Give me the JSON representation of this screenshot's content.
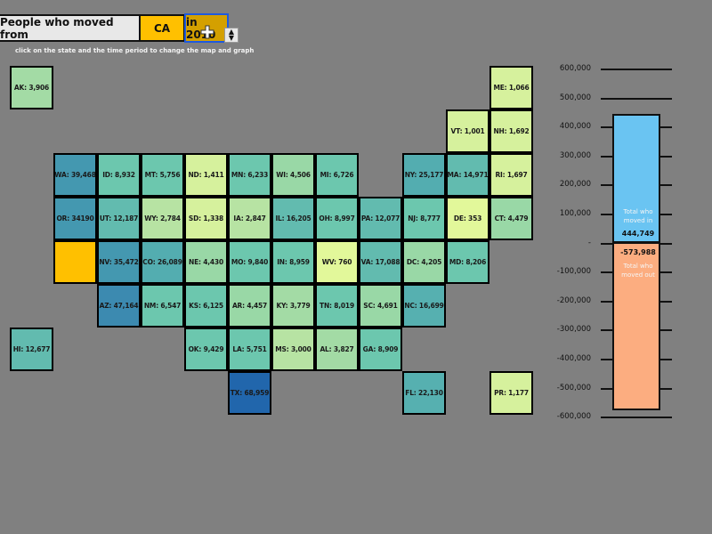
{
  "header": {
    "prefix_label": "People who moved from",
    "selected_state": "CA",
    "selected_year": "in 2010",
    "hint": "click on the state and the time period to change the map and graph"
  },
  "colors": {
    "background": "#808080",
    "selected_state": "#ffc000",
    "year_box": "#d4a000",
    "moved_in_bar": "#6ac4f2",
    "moved_out_bar": "#fcad80"
  },
  "map": {
    "tiles": [
      {
        "code": "AK",
        "label": "AK: 3,906",
        "value": 3906,
        "col": 0,
        "row": 0,
        "color": "#a3dba5"
      },
      {
        "code": "ME",
        "label": "ME: 1,066",
        "value": 1066,
        "col": 11,
        "row": 0,
        "color": "#d6f19d"
      },
      {
        "code": "VT",
        "label": "VT: 1,001",
        "value": 1001,
        "col": 10,
        "row": 1,
        "color": "#d6f19d"
      },
      {
        "code": "NH",
        "label": "NH: 1,692",
        "value": 1692,
        "col": 11,
        "row": 1,
        "color": "#d6f19d"
      },
      {
        "code": "WA",
        "label": "WA: 39,468",
        "value": 39468,
        "col": 1,
        "row": 2,
        "color": "#4498b0"
      },
      {
        "code": "ID",
        "label": "ID: 8,932",
        "value": 8932,
        "col": 2,
        "row": 2,
        "color": "#6cc7ae"
      },
      {
        "code": "MT",
        "label": "MT: 5,756",
        "value": 5756,
        "col": 3,
        "row": 2,
        "color": "#6cc7ae"
      },
      {
        "code": "ND",
        "label": "ND: 1,411",
        "value": 1411,
        "col": 4,
        "row": 2,
        "color": "#d6f19d"
      },
      {
        "code": "MN",
        "label": "MN: 6,233",
        "value": 6233,
        "col": 5,
        "row": 2,
        "color": "#6cc7ae"
      },
      {
        "code": "WI",
        "label": "WI: 4,506",
        "value": 4506,
        "col": 6,
        "row": 2,
        "color": "#99d8a6"
      },
      {
        "code": "MI",
        "label": "MI: 6,726",
        "value": 6726,
        "col": 7,
        "row": 2,
        "color": "#6cc7ae"
      },
      {
        "code": "NY",
        "label": "NY: 25,177",
        "value": 25177,
        "col": 9,
        "row": 2,
        "color": "#53adb0"
      },
      {
        "code": "MA",
        "label": "MA: 14,971",
        "value": 14971,
        "col": 10,
        "row": 2,
        "color": "#62bbaf"
      },
      {
        "code": "RI",
        "label": "RI: 1,697",
        "value": 1697,
        "col": 11,
        "row": 2,
        "color": "#d6f19d"
      },
      {
        "code": "OR",
        "label": "OR: 34190",
        "value": 34190,
        "col": 1,
        "row": 3,
        "color": "#4498b0"
      },
      {
        "code": "UT",
        "label": "UT: 12,187",
        "value": 12187,
        "col": 2,
        "row": 3,
        "color": "#62bbaf"
      },
      {
        "code": "WY",
        "label": "WY: 2,784",
        "value": 2784,
        "col": 3,
        "row": 3,
        "color": "#b7e3a3"
      },
      {
        "code": "SD",
        "label": "SD: 1,338",
        "value": 1338,
        "col": 4,
        "row": 3,
        "color": "#d6f19d"
      },
      {
        "code": "IA",
        "label": "IA: 2,847",
        "value": 2847,
        "col": 5,
        "row": 3,
        "color": "#b7e3a3"
      },
      {
        "code": "IL",
        "label": "IL: 16,205",
        "value": 16205,
        "col": 6,
        "row": 3,
        "color": "#62bbaf"
      },
      {
        "code": "OH",
        "label": "OH: 8,997",
        "value": 8997,
        "col": 7,
        "row": 3,
        "color": "#6cc7ae"
      },
      {
        "code": "PA",
        "label": "PA: 12,077",
        "value": 12077,
        "col": 8,
        "row": 3,
        "color": "#62bbaf"
      },
      {
        "code": "NJ",
        "label": "NJ: 8,777",
        "value": 8777,
        "col": 9,
        "row": 3,
        "color": "#6cc7ae"
      },
      {
        "code": "DE",
        "label": "DE: 353",
        "value": 353,
        "col": 10,
        "row": 3,
        "color": "#e2f89a"
      },
      {
        "code": "CT",
        "label": "CT: 4,479",
        "value": 4479,
        "col": 11,
        "row": 3,
        "color": "#99d8a6"
      },
      {
        "code": "CA",
        "label": "",
        "value": null,
        "col": 1,
        "row": 4,
        "color": "#ffc000"
      },
      {
        "code": "NV",
        "label": "NV: 35,472",
        "value": 35472,
        "col": 2,
        "row": 4,
        "color": "#4498b0"
      },
      {
        "code": "CO",
        "label": "CO: 26,089",
        "value": 26089,
        "col": 3,
        "row": 4,
        "color": "#53adb0"
      },
      {
        "code": "NE",
        "label": "NE: 4,430",
        "value": 4430,
        "col": 4,
        "row": 4,
        "color": "#99d8a6"
      },
      {
        "code": "MO",
        "label": "MO: 9,840",
        "value": 9840,
        "col": 5,
        "row": 4,
        "color": "#6cc7ae"
      },
      {
        "code": "IN",
        "label": "IN: 8,959",
        "value": 8959,
        "col": 6,
        "row": 4,
        "color": "#6cc7ae"
      },
      {
        "code": "WV",
        "label": "WV: 760",
        "value": 760,
        "col": 7,
        "row": 4,
        "color": "#e2f89a"
      },
      {
        "code": "VA",
        "label": "VA: 17,088",
        "value": 17088,
        "col": 8,
        "row": 4,
        "color": "#62bbaf"
      },
      {
        "code": "DC",
        "label": "DC: 4,205",
        "value": 4205,
        "col": 9,
        "row": 4,
        "color": "#99d8a6"
      },
      {
        "code": "MD",
        "label": "MD: 8,206",
        "value": 8206,
        "col": 10,
        "row": 4,
        "color": "#6cc7ae"
      },
      {
        "code": "AZ",
        "label": "AZ: 47,164",
        "value": 47164,
        "col": 2,
        "row": 5,
        "color": "#3c8ab0"
      },
      {
        "code": "NM",
        "label": "NM: 6,547",
        "value": 6547,
        "col": 3,
        "row": 5,
        "color": "#6cc7ae"
      },
      {
        "code": "KS",
        "label": "KS: 6,125",
        "value": 6125,
        "col": 4,
        "row": 5,
        "color": "#6cc7ae"
      },
      {
        "code": "AR",
        "label": "AR: 4,457",
        "value": 4457,
        "col": 5,
        "row": 5,
        "color": "#99d8a6"
      },
      {
        "code": "KY",
        "label": "KY: 3,779",
        "value": 3779,
        "col": 6,
        "row": 5,
        "color": "#a3dba5"
      },
      {
        "code": "TN",
        "label": "TN: 8,019",
        "value": 8019,
        "col": 7,
        "row": 5,
        "color": "#6cc7ae"
      },
      {
        "code": "SC",
        "label": "SC: 4,691",
        "value": 4691,
        "col": 8,
        "row": 5,
        "color": "#99d8a6"
      },
      {
        "code": "NC",
        "label": "NC: 16,699",
        "value": 16699,
        "col": 9,
        "row": 5,
        "color": "#56b0b0"
      },
      {
        "code": "HI",
        "label": "HI: 12,677",
        "value": 12677,
        "col": 0,
        "row": 6,
        "color": "#62bbaf"
      },
      {
        "code": "OK",
        "label": "OK: 9,429",
        "value": 9429,
        "col": 4,
        "row": 6,
        "color": "#6cc7ae"
      },
      {
        "code": "LA",
        "label": "LA: 5,751",
        "value": 5751,
        "col": 5,
        "row": 6,
        "color": "#6cc7ae"
      },
      {
        "code": "MS",
        "label": "MS: 3,000",
        "value": 3000,
        "col": 6,
        "row": 6,
        "color": "#b7e3a3"
      },
      {
        "code": "AL",
        "label": "AL: 3,827",
        "value": 3827,
        "col": 7,
        "row": 6,
        "color": "#a3dba5"
      },
      {
        "code": "GA",
        "label": "GA: 8,909",
        "value": 8909,
        "col": 8,
        "row": 6,
        "color": "#6cc7ae"
      },
      {
        "code": "TX",
        "label": "TX: 68,959",
        "value": 68959,
        "col": 5,
        "row": 7,
        "color": "#2166ac"
      },
      {
        "code": "FL",
        "label": "FL: 22,130",
        "value": 22130,
        "col": 9,
        "row": 7,
        "color": "#56b0b0"
      },
      {
        "code": "PR",
        "label": "PR: 1,177",
        "value": 1177,
        "col": 11,
        "row": 7,
        "color": "#d6f19d"
      }
    ]
  },
  "chart_data": {
    "type": "bar",
    "title": "",
    "categories": [
      "Total who moved in",
      "Total who moved out"
    ],
    "values": [
      444749,
      -573988
    ],
    "value_labels": [
      "444,749",
      "-573,988"
    ],
    "ylim": [
      -600000,
      600000
    ],
    "yticks": [
      "600,000",
      "500,000",
      "400,000",
      "300,000",
      "200,000",
      "100,000",
      "-",
      "-100,000",
      "-200,000",
      "-300,000",
      "-400,000",
      "-500,000",
      "-600,000"
    ],
    "grid": true,
    "legend": null
  },
  "chart": {
    "in_label_line1": "Total who",
    "in_label_line2": "moved in",
    "in_value": "444,749",
    "out_value": "-573,988",
    "out_label_line1": "Total who",
    "out_label_line2": "moved out"
  }
}
